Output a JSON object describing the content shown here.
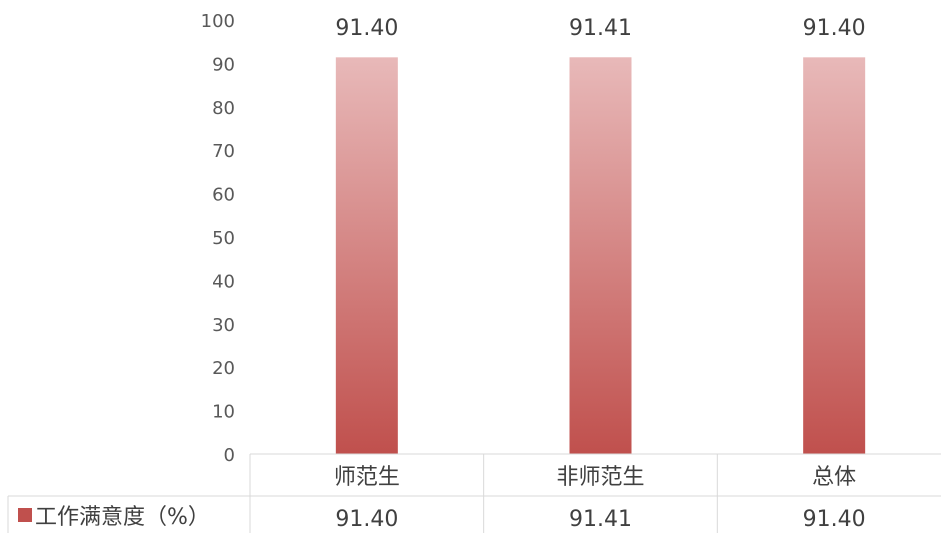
{
  "chart_data": {
    "type": "bar",
    "categories": [
      "师范生",
      "非师范生",
      "总体"
    ],
    "series": [
      {
        "name": "工作满意度（%）",
        "values": [
          91.4,
          91.41,
          91.4
        ],
        "labels": [
          "91.40",
          "91.41",
          "91.40"
        ]
      }
    ],
    "ylim": [
      0,
      100
    ],
    "yticks": [
      0,
      10,
      20,
      30,
      40,
      50,
      60,
      70,
      80,
      90,
      100
    ],
    "grid": false,
    "data_table": true,
    "colors": {
      "bar_top": "#e8b9b9",
      "bar_bottom": "#c0504d",
      "legend_key": "#c0504d"
    }
  }
}
